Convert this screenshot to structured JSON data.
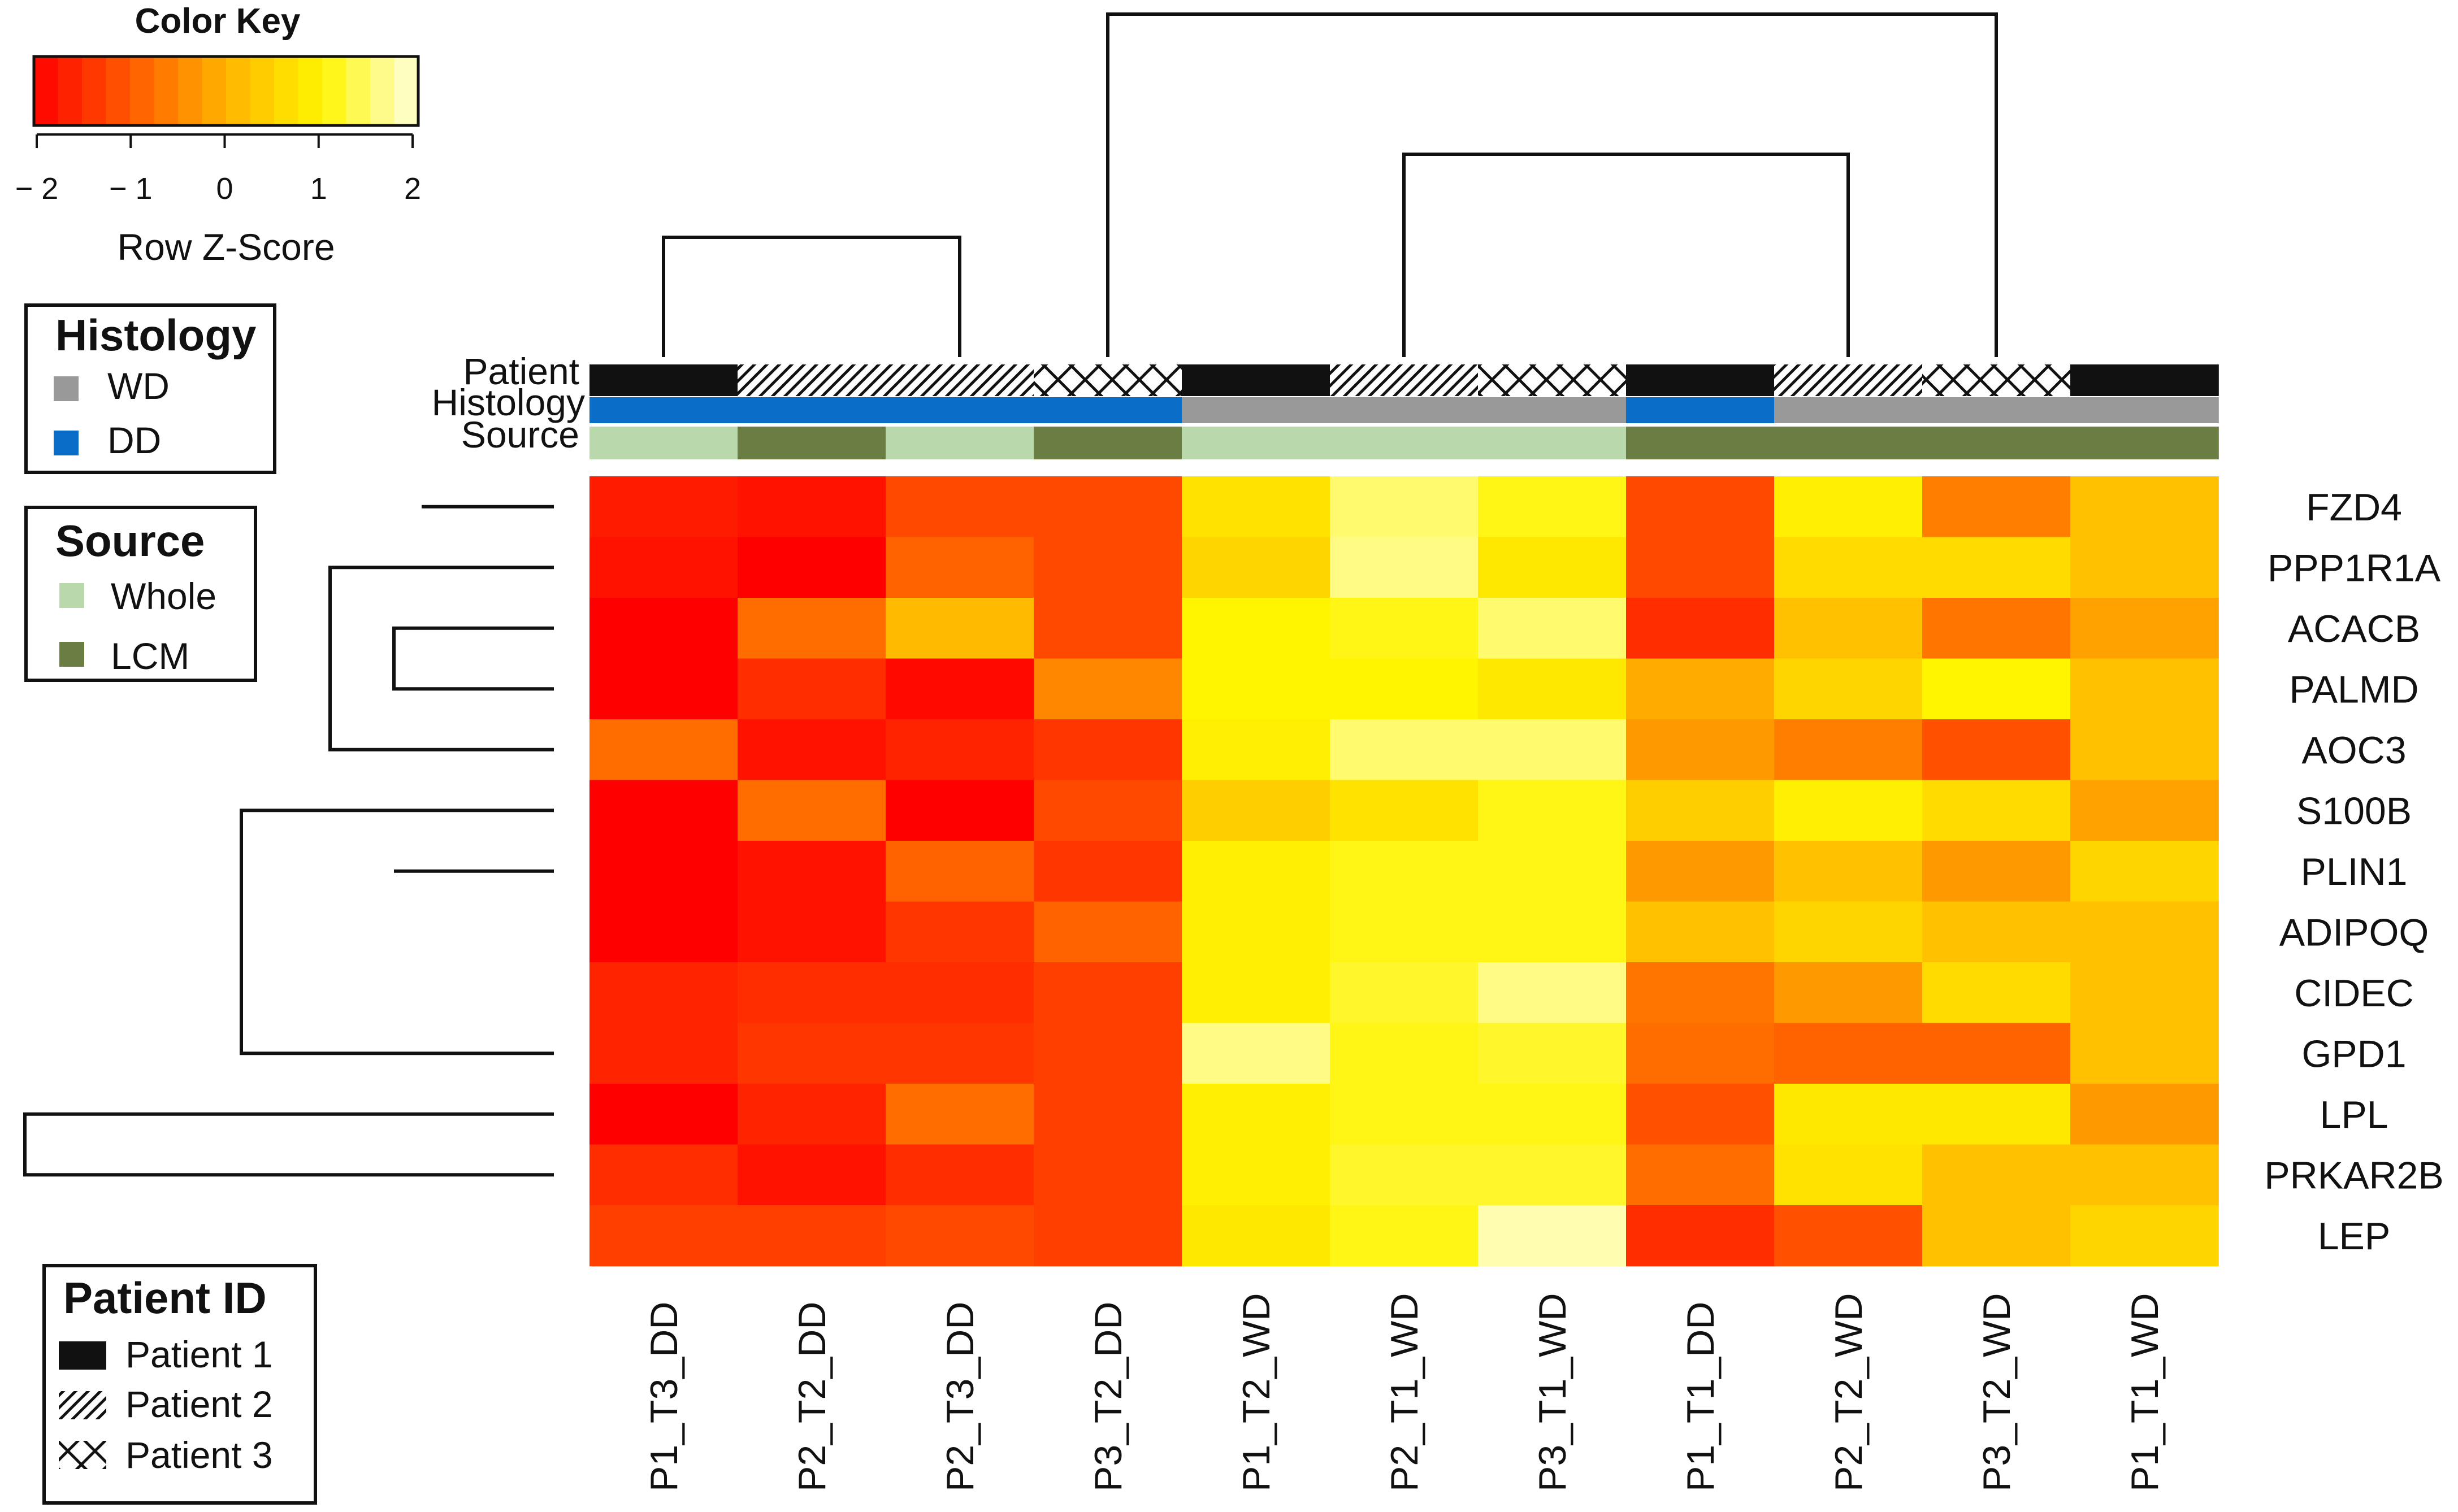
{
  "chart_data": {
    "type": "heatmap",
    "title": "",
    "columns": [
      "P1_T3_DD",
      "P2_T2_DD",
      "P2_T3_DD",
      "P3_T2_DD",
      "P1_T2_WD",
      "P2_T1_WD",
      "P3_T1_WD",
      "P1_T1_DD",
      "P2_T2_WD",
      "P3_T2_WD",
      "P1_T1_WD"
    ],
    "rows": [
      "FZD4",
      "PPP1R1A",
      "ACACB",
      "PALMD",
      "AOC3",
      "S100B",
      "PLIN1",
      "ADIPOQ",
      "CIDEC",
      "GPD1",
      "LPL",
      "PRKAR2B",
      "LEP"
    ],
    "values": [
      [
        -1.7,
        -1.8,
        -1.2,
        -1.2,
        0.7,
        1.5,
        1.1,
        -1.2,
        0.9,
        -0.6,
        0.2
      ],
      [
        -1.8,
        -2.0,
        -0.9,
        -1.2,
        0.5,
        1.6,
        0.8,
        -1.2,
        0.6,
        0.6,
        0.2
      ],
      [
        -2.0,
        -0.8,
        0.1,
        -1.2,
        1.0,
        1.1,
        1.5,
        -1.5,
        0.2,
        -0.7,
        -0.2
      ],
      [
        -2.0,
        -1.5,
        -1.9,
        -0.5,
        1.0,
        1.0,
        0.8,
        -0.1,
        0.5,
        1.0,
        0.2
      ],
      [
        -0.8,
        -1.8,
        -1.6,
        -1.4,
        0.9,
        1.5,
        1.5,
        -0.3,
        -0.6,
        -1.1,
        0.2
      ],
      [
        -2.0,
        -0.8,
        -2.0,
        -1.2,
        0.4,
        0.7,
        1.1,
        0.4,
        0.9,
        0.6,
        -0.2
      ],
      [
        -2.0,
        -1.8,
        -0.9,
        -1.4,
        0.9,
        1.1,
        1.1,
        -0.3,
        0.2,
        -0.3,
        0.5
      ],
      [
        -2.0,
        -1.8,
        -1.4,
        -0.9,
        0.9,
        1.1,
        1.1,
        0.2,
        0.5,
        0.2,
        0.2
      ],
      [
        -1.6,
        -1.5,
        -1.5,
        -1.3,
        0.9,
        1.2,
        1.6,
        -0.7,
        -0.3,
        0.6,
        0.2
      ],
      [
        -1.6,
        -1.4,
        -1.4,
        -1.3,
        1.6,
        1.1,
        1.2,
        -0.8,
        -0.9,
        -0.9,
        0.2
      ],
      [
        -2.0,
        -1.6,
        -0.8,
        -1.3,
        0.9,
        1.1,
        1.1,
        -1.1,
        0.8,
        0.8,
        -0.3
      ],
      [
        -1.5,
        -1.8,
        -1.5,
        -1.3,
        0.9,
        1.2,
        1.2,
        -0.8,
        0.7,
        0.2,
        0.2
      ],
      [
        -1.3,
        -1.3,
        -1.2,
        -1.3,
        0.8,
        1.1,
        1.8,
        -1.5,
        -1.1,
        0.2,
        0.5
      ]
    ],
    "scale": {
      "min": -2,
      "max": 2
    },
    "color_key": {
      "title": "Color Key",
      "xlabel": "Row Z-Score",
      "ticks": [
        "− 2",
        "− 1",
        "0",
        "1",
        "2"
      ],
      "tick_values": [
        -2,
        -1,
        0,
        1,
        2
      ]
    },
    "annotation_tracks": {
      "labels": [
        "Patient",
        "Histology",
        "Source"
      ],
      "patient": [
        "Patient 1",
        "Patient 2",
        "Patient 2",
        "Patient 3",
        "Patient 1",
        "Patient 2",
        "Patient 3",
        "Patient 1",
        "Patient 2",
        "Patient 3",
        "Patient 1"
      ],
      "histology": [
        "DD",
        "DD",
        "DD",
        "DD",
        "WD",
        "WD",
        "WD",
        "DD",
        "WD",
        "WD",
        "WD"
      ],
      "source": [
        "Whole",
        "LCM",
        "Whole",
        "LCM",
        "Whole",
        "Whole",
        "Whole",
        "LCM",
        "LCM",
        "LCM",
        "LCM"
      ]
    },
    "legends": {
      "histology": {
        "title": "Histology",
        "items": [
          {
            "label": "WD",
            "color": "#999999"
          },
          {
            "label": "DD",
            "color": "#0a6ec8"
          }
        ]
      },
      "source": {
        "title": "Source",
        "items": [
          {
            "label": "Whole",
            "color": "#b9d9ac"
          },
          {
            "label": "LCM",
            "color": "#6a7e43"
          }
        ]
      },
      "patient": {
        "title": "Patient ID",
        "items": [
          {
            "label": "Patient 1",
            "pattern": "solid"
          },
          {
            "label": "Patient 2",
            "pattern": "hatch"
          },
          {
            "label": "Patient 3",
            "pattern": "crosshatch"
          }
        ]
      }
    },
    "col_dendrogram": [
      [
        1,
        2
      ],
      [
        4,
        5
      ],
      [
        3,
        -2
      ],
      [
        -1,
        -3
      ],
      [
        6,
        7
      ],
      [
        5,
        -5
      ],
      [
        10,
        11
      ],
      [
        9,
        -7
      ],
      [
        8,
        -8
      ],
      [
        -6,
        -9
      ],
      [
        -4,
        -10
      ]
    ],
    "row_dendrogram": [
      [
        1,
        2
      ],
      [
        -1,
        3
      ],
      [
        4,
        5
      ],
      [
        -3,
        -4
      ],
      [
        7,
        8
      ],
      [
        -7,
        6
      ],
      [
        -2,
        -5
      ],
      [
        12,
        13
      ],
      [
        11,
        -8
      ],
      [
        10,
        -9
      ],
      [
        -6,
        -10
      ],
      [
        -11,
        -12
      ]
    ]
  }
}
